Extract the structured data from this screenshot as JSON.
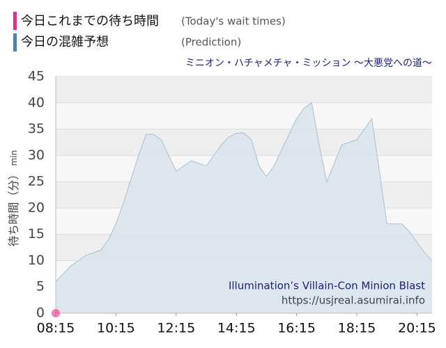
{
  "chart_data": {
    "type": "area",
    "subtitle": "ミニオン・ハチャメチャ・ミッション ～大悪党への道～",
    "ylabel": "待ち時間（分）",
    "ylabel_unit": "min",
    "annotations": [
      "Illumination’s Villain-Con Minion Blast",
      "https://usjreal.asumirai.info"
    ],
    "series": [
      {
        "name": "今日これまでの待ち時間",
        "name_en": "(Today's wait times)",
        "color": "#f0288c",
        "x": [
          495
        ],
        "values": [
          0
        ]
      },
      {
        "name": "今日の混雑予想",
        "name_en": "(Prediction)",
        "color": "#4a82b4",
        "x": [
          495,
          510,
          525,
          540,
          555,
          570,
          585,
          600,
          615,
          630,
          645,
          660,
          675,
          690,
          705,
          720,
          735,
          750,
          765,
          780,
          795,
          810,
          825,
          840,
          855,
          870,
          885,
          900,
          915,
          930,
          945,
          960,
          975,
          990,
          1005,
          1020,
          1035,
          1050,
          1065,
          1080,
          1095,
          1110,
          1125,
          1140,
          1155,
          1170,
          1185,
          1200,
          1215,
          1230,
          1245
        ],
        "values": [
          6,
          7.5,
          9,
          10,
          11,
          11.5,
          12,
          14,
          17,
          21,
          25.5,
          30,
          34,
          34,
          33,
          30,
          27,
          28,
          29,
          28.5,
          28,
          30,
          32,
          33.5,
          34.2,
          34.3,
          33,
          28,
          26,
          28,
          31,
          34,
          37,
          39,
          40,
          32,
          25,
          28.5,
          32,
          32.5,
          33,
          35,
          37,
          27,
          17,
          17,
          17,
          15.5,
          13.5,
          11.5,
          10
        ]
      }
    ],
    "xlim": [
      495,
      1245
    ],
    "xticks": [
      {
        "value": 495,
        "label": "08:15"
      },
      {
        "value": 615,
        "label": "10:15"
      },
      {
        "value": 735,
        "label": "12:15"
      },
      {
        "value": 855,
        "label": "14:15"
      },
      {
        "value": 975,
        "label": "16:15"
      },
      {
        "value": 1095,
        "label": "18:15"
      },
      {
        "value": 1215,
        "label": "20:15"
      }
    ],
    "ylim": [
      0,
      45
    ],
    "yticks": [
      0,
      5,
      10,
      15,
      20,
      25,
      30,
      35,
      40,
      45
    ],
    "grid": true
  }
}
